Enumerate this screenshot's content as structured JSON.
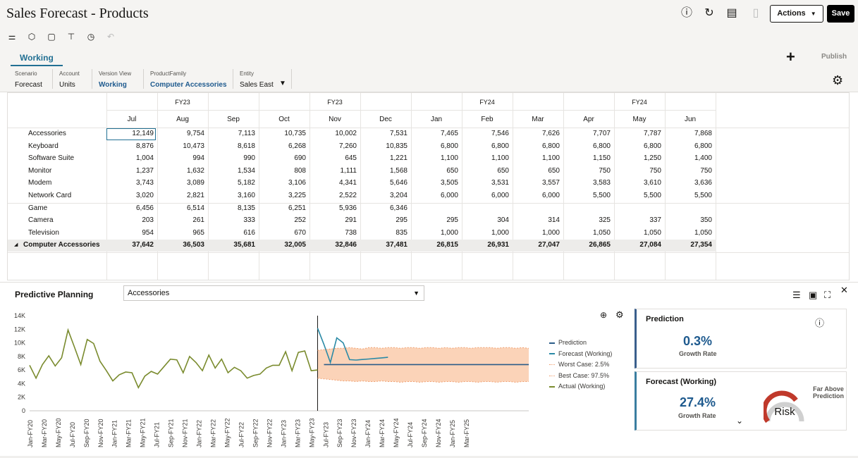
{
  "app": {
    "title": "Sales Forecast - Products"
  },
  "header": {
    "actions_label": "Actions",
    "actions_caret": "▼",
    "save_label": "Save"
  },
  "tabs": [
    {
      "label": "Working"
    }
  ],
  "toolbar": {
    "publish_label": "Publish",
    "add_icon": "+"
  },
  "pov": [
    {
      "label": "Scenario",
      "value": "Forecast"
    },
    {
      "label": "Account",
      "value": "Units"
    },
    {
      "label": "Version View",
      "value": "Working"
    },
    {
      "label": "ProductFamily",
      "value": "Computer Accessories"
    },
    {
      "label": "Entity",
      "value": "Sales East"
    }
  ],
  "grid": {
    "fy_headers": [
      "FY23",
      "FY23",
      "FY24",
      "FY24"
    ],
    "months": [
      "Jul",
      "Aug",
      "Sep",
      "Oct",
      "Nov",
      "Dec",
      "Jan",
      "Feb",
      "Mar",
      "Apr",
      "May",
      "Jun"
    ],
    "rows": [
      {
        "label": "Accessories",
        "values": [
          "12,149",
          "9,754",
          "7,113",
          "10,735",
          "10,002",
          "7,531",
          "7,465",
          "7,546",
          "7,626",
          "7,707",
          "7,787",
          "7,868"
        ]
      },
      {
        "label": "Keyboard",
        "values": [
          "8,876",
          "10,473",
          "8,618",
          "6,268",
          "7,260",
          "10,835",
          "6,800",
          "6,800",
          "6,800",
          "6,800",
          "6,800",
          "6,800"
        ]
      },
      {
        "label": "Software Suite",
        "values": [
          "1,004",
          "994",
          "990",
          "690",
          "645",
          "1,221",
          "1,100",
          "1,100",
          "1,100",
          "1,150",
          "1,250",
          "1,400"
        ]
      },
      {
        "label": "Monitor",
        "values": [
          "1,237",
          "1,632",
          "1,534",
          "808",
          "1,111",
          "1,568",
          "650",
          "650",
          "650",
          "750",
          "750",
          "750"
        ]
      },
      {
        "label": "Modem",
        "values": [
          "3,743",
          "3,089",
          "5,182",
          "3,106",
          "4,341",
          "5,646",
          "3,505",
          "3,531",
          "3,557",
          "3,583",
          "3,610",
          "3,636"
        ]
      },
      {
        "label": "Network Card",
        "values": [
          "3,020",
          "2,821",
          "3,160",
          "3,225",
          "2,522",
          "3,204",
          "6,000",
          "6,000",
          "6,000",
          "5,500",
          "5,500",
          "5,500"
        ]
      },
      {
        "label": "Game",
        "values": [
          "6,456",
          "6,514",
          "8,135",
          "6,251",
          "5,936",
          "6,346",
          "",
          "",
          "",
          "",
          "",
          ""
        ]
      },
      {
        "label": "Camera",
        "values": [
          "203",
          "261",
          "333",
          "252",
          "291",
          "295",
          "295",
          "304",
          "314",
          "325",
          "337",
          "350"
        ]
      },
      {
        "label": "Television",
        "values": [
          "954",
          "965",
          "616",
          "670",
          "738",
          "835",
          "1,000",
          "1,000",
          "1,000",
          "1,050",
          "1,050",
          "1,050"
        ]
      },
      {
        "label": "Computer Accessories",
        "values": [
          "37,642",
          "36,503",
          "35,681",
          "32,005",
          "32,846",
          "37,481",
          "26,815",
          "26,931",
          "27,047",
          "26,865",
          "27,084",
          "27,354"
        ],
        "total": true
      }
    ]
  },
  "predictive": {
    "title": "Predictive Planning",
    "member": "Accessories",
    "legend": [
      "Prediction",
      "Forecast (Working)",
      "Worst Case: 2.5%",
      "Best Case: 97.5%",
      "Actual (Working)"
    ],
    "prediction_card": {
      "title": "Prediction",
      "value": "0.3%",
      "label": "Growth Rate"
    },
    "forecast_card": {
      "title": "Forecast (Working)",
      "value": "27.4%",
      "label": "Growth Rate",
      "risk": "Risk",
      "note_line1": "Far Above",
      "note_line2": "Prediction"
    }
  },
  "chart_data": {
    "type": "line",
    "ylim": [
      0,
      14000
    ],
    "y_ticks": [
      "0",
      "2K",
      "4K",
      "6K",
      "8K",
      "10K",
      "12K",
      "14K"
    ],
    "x_labels": [
      "Jan-FY20",
      "Mar-FY20",
      "May-FY20",
      "Jul-FY20",
      "Sep-FY20",
      "Nov-FY20",
      "Jan-FY21",
      "Mar-FY21",
      "May-FY21",
      "Jul-FY21",
      "Sep-FY21",
      "Nov-FY21",
      "Jan-FY22",
      "Mar-FY22",
      "May-FY22",
      "Jul-FY22",
      "Sep-FY22",
      "Nov-FY22",
      "Jan-FY23",
      "Mar-FY23",
      "May-FY23",
      "Jul-FY23",
      "Sep-FY23",
      "Nov-FY23",
      "Jan-FY24",
      "Mar-FY24",
      "May-FY24",
      "Jul-FY24",
      "Sep-FY24",
      "Nov-FY24",
      "Jan-FY25",
      "Mar-FY25"
    ],
    "series": [
      {
        "name": "Actual (Working)",
        "color": "#7a8b2e",
        "start": 0,
        "values": [
          6700,
          4800,
          6800,
          8100,
          6600,
          7800,
          11900,
          9400,
          6800,
          10500,
          9900,
          7300,
          5900,
          4400,
          5300,
          5700,
          5600,
          3400,
          5100,
          5800,
          5400,
          6500,
          7600,
          7500,
          5600,
          8000,
          7100,
          5900,
          8200,
          6300,
          7600,
          5600,
          6400,
          5900,
          4800,
          5200,
          5400,
          6300,
          6700,
          6700,
          8700,
          5900,
          8600,
          8800,
          5900,
          6000
        ]
      },
      {
        "name": "Forecast (Working)",
        "color": "#2b8aa6",
        "start": 45,
        "values": [
          12149,
          9754,
          7113,
          10735,
          10002,
          7531,
          7465,
          7546,
          7626,
          7707,
          7787,
          7868
        ]
      },
      {
        "name": "Prediction",
        "color": "#2a5c88",
        "start": 46,
        "values": [
          6800,
          6800,
          6800,
          6800,
          6800,
          6800,
          6800,
          6800,
          6800,
          6800,
          6800,
          6800,
          6800,
          6800,
          6800,
          6800,
          6800,
          6800,
          6800,
          6800,
          6800,
          6800,
          6800,
          6800,
          6800,
          6800,
          6800,
          6800,
          6800,
          6800,
          6800,
          6800,
          6800
        ]
      },
      {
        "name": "Best Case: 97.5%",
        "color": "#f0a070",
        "start": 45,
        "values": [
          8900,
          9000,
          9100,
          9200,
          9200,
          9300,
          9200,
          9100,
          9300,
          9300,
          9200,
          9300,
          9300,
          9200,
          9300,
          9300,
          9200,
          9300,
          9300,
          9200,
          9300,
          9200,
          9300,
          9300,
          9200,
          9300,
          9300,
          9300,
          9200,
          9300,
          9300,
          9200,
          9300,
          9200
        ]
      },
      {
        "name": "Worst Case: 2.5%",
        "color": "#f0a070",
        "start": 45,
        "values": [
          4800,
          4700,
          4600,
          4500,
          4400,
          4400,
          4300,
          4400,
          4300,
          4300,
          4400,
          4300,
          4300,
          4200,
          4300,
          4300,
          4200,
          4300,
          4300,
          4200,
          4300,
          4300,
          4200,
          4300,
          4300,
          4200,
          4300,
          4300,
          4200,
          4300,
          4300,
          4200,
          4300,
          4300
        ]
      }
    ]
  }
}
